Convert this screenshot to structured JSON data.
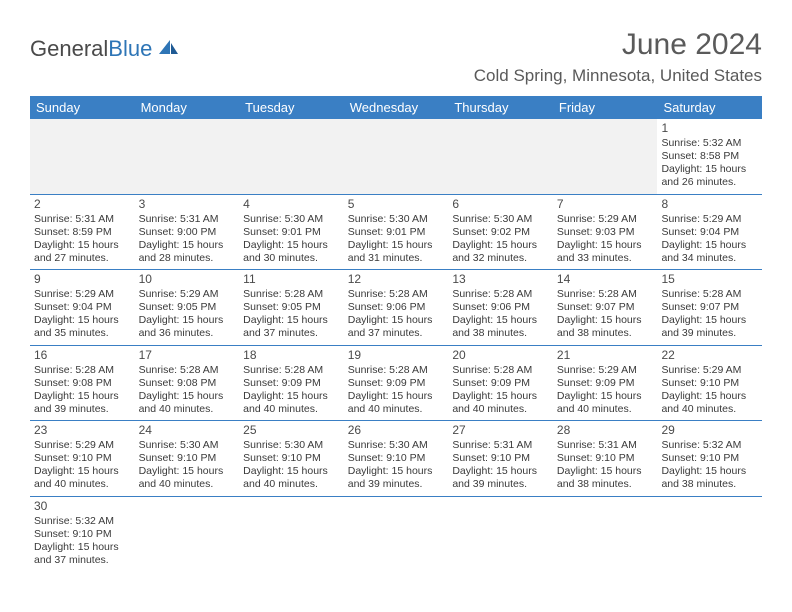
{
  "logo": {
    "text1": "General",
    "text2": "Blue"
  },
  "title": "June 2024",
  "location": "Cold Spring, Minnesota, United States",
  "colors": {
    "header_bg": "#3a7fc4",
    "header_text": "#ffffff",
    "border": "#3a7fc4",
    "empty_bg": "#f2f2f2",
    "body_text": "#3a3a3a",
    "title_text": "#5a5a5a"
  },
  "weekdays": [
    "Sunday",
    "Monday",
    "Tuesday",
    "Wednesday",
    "Thursday",
    "Friday",
    "Saturday"
  ],
  "weeks": [
    [
      {
        "day": "",
        "empty": true
      },
      {
        "day": "",
        "empty": true
      },
      {
        "day": "",
        "empty": true
      },
      {
        "day": "",
        "empty": true
      },
      {
        "day": "",
        "empty": true
      },
      {
        "day": "",
        "empty": true
      },
      {
        "day": "1",
        "sunrise": "Sunrise: 5:32 AM",
        "sunset": "Sunset: 8:58 PM",
        "daylight1": "Daylight: 15 hours",
        "daylight2": "and 26 minutes."
      }
    ],
    [
      {
        "day": "2",
        "sunrise": "Sunrise: 5:31 AM",
        "sunset": "Sunset: 8:59 PM",
        "daylight1": "Daylight: 15 hours",
        "daylight2": "and 27 minutes."
      },
      {
        "day": "3",
        "sunrise": "Sunrise: 5:31 AM",
        "sunset": "Sunset: 9:00 PM",
        "daylight1": "Daylight: 15 hours",
        "daylight2": "and 28 minutes."
      },
      {
        "day": "4",
        "sunrise": "Sunrise: 5:30 AM",
        "sunset": "Sunset: 9:01 PM",
        "daylight1": "Daylight: 15 hours",
        "daylight2": "and 30 minutes."
      },
      {
        "day": "5",
        "sunrise": "Sunrise: 5:30 AM",
        "sunset": "Sunset: 9:01 PM",
        "daylight1": "Daylight: 15 hours",
        "daylight2": "and 31 minutes."
      },
      {
        "day": "6",
        "sunrise": "Sunrise: 5:30 AM",
        "sunset": "Sunset: 9:02 PM",
        "daylight1": "Daylight: 15 hours",
        "daylight2": "and 32 minutes."
      },
      {
        "day": "7",
        "sunrise": "Sunrise: 5:29 AM",
        "sunset": "Sunset: 9:03 PM",
        "daylight1": "Daylight: 15 hours",
        "daylight2": "and 33 minutes."
      },
      {
        "day": "8",
        "sunrise": "Sunrise: 5:29 AM",
        "sunset": "Sunset: 9:04 PM",
        "daylight1": "Daylight: 15 hours",
        "daylight2": "and 34 minutes."
      }
    ],
    [
      {
        "day": "9",
        "sunrise": "Sunrise: 5:29 AM",
        "sunset": "Sunset: 9:04 PM",
        "daylight1": "Daylight: 15 hours",
        "daylight2": "and 35 minutes."
      },
      {
        "day": "10",
        "sunrise": "Sunrise: 5:29 AM",
        "sunset": "Sunset: 9:05 PM",
        "daylight1": "Daylight: 15 hours",
        "daylight2": "and 36 minutes."
      },
      {
        "day": "11",
        "sunrise": "Sunrise: 5:28 AM",
        "sunset": "Sunset: 9:05 PM",
        "daylight1": "Daylight: 15 hours",
        "daylight2": "and 37 minutes."
      },
      {
        "day": "12",
        "sunrise": "Sunrise: 5:28 AM",
        "sunset": "Sunset: 9:06 PM",
        "daylight1": "Daylight: 15 hours",
        "daylight2": "and 37 minutes."
      },
      {
        "day": "13",
        "sunrise": "Sunrise: 5:28 AM",
        "sunset": "Sunset: 9:06 PM",
        "daylight1": "Daylight: 15 hours",
        "daylight2": "and 38 minutes."
      },
      {
        "day": "14",
        "sunrise": "Sunrise: 5:28 AM",
        "sunset": "Sunset: 9:07 PM",
        "daylight1": "Daylight: 15 hours",
        "daylight2": "and 38 minutes."
      },
      {
        "day": "15",
        "sunrise": "Sunrise: 5:28 AM",
        "sunset": "Sunset: 9:07 PM",
        "daylight1": "Daylight: 15 hours",
        "daylight2": "and 39 minutes."
      }
    ],
    [
      {
        "day": "16",
        "sunrise": "Sunrise: 5:28 AM",
        "sunset": "Sunset: 9:08 PM",
        "daylight1": "Daylight: 15 hours",
        "daylight2": "and 39 minutes."
      },
      {
        "day": "17",
        "sunrise": "Sunrise: 5:28 AM",
        "sunset": "Sunset: 9:08 PM",
        "daylight1": "Daylight: 15 hours",
        "daylight2": "and 40 minutes."
      },
      {
        "day": "18",
        "sunrise": "Sunrise: 5:28 AM",
        "sunset": "Sunset: 9:09 PM",
        "daylight1": "Daylight: 15 hours",
        "daylight2": "and 40 minutes."
      },
      {
        "day": "19",
        "sunrise": "Sunrise: 5:28 AM",
        "sunset": "Sunset: 9:09 PM",
        "daylight1": "Daylight: 15 hours",
        "daylight2": "and 40 minutes."
      },
      {
        "day": "20",
        "sunrise": "Sunrise: 5:28 AM",
        "sunset": "Sunset: 9:09 PM",
        "daylight1": "Daylight: 15 hours",
        "daylight2": "and 40 minutes."
      },
      {
        "day": "21",
        "sunrise": "Sunrise: 5:29 AM",
        "sunset": "Sunset: 9:09 PM",
        "daylight1": "Daylight: 15 hours",
        "daylight2": "and 40 minutes."
      },
      {
        "day": "22",
        "sunrise": "Sunrise: 5:29 AM",
        "sunset": "Sunset: 9:10 PM",
        "daylight1": "Daylight: 15 hours",
        "daylight2": "and 40 minutes."
      }
    ],
    [
      {
        "day": "23",
        "sunrise": "Sunrise: 5:29 AM",
        "sunset": "Sunset: 9:10 PM",
        "daylight1": "Daylight: 15 hours",
        "daylight2": "and 40 minutes."
      },
      {
        "day": "24",
        "sunrise": "Sunrise: 5:30 AM",
        "sunset": "Sunset: 9:10 PM",
        "daylight1": "Daylight: 15 hours",
        "daylight2": "and 40 minutes."
      },
      {
        "day": "25",
        "sunrise": "Sunrise: 5:30 AM",
        "sunset": "Sunset: 9:10 PM",
        "daylight1": "Daylight: 15 hours",
        "daylight2": "and 40 minutes."
      },
      {
        "day": "26",
        "sunrise": "Sunrise: 5:30 AM",
        "sunset": "Sunset: 9:10 PM",
        "daylight1": "Daylight: 15 hours",
        "daylight2": "and 39 minutes."
      },
      {
        "day": "27",
        "sunrise": "Sunrise: 5:31 AM",
        "sunset": "Sunset: 9:10 PM",
        "daylight1": "Daylight: 15 hours",
        "daylight2": "and 39 minutes."
      },
      {
        "day": "28",
        "sunrise": "Sunrise: 5:31 AM",
        "sunset": "Sunset: 9:10 PM",
        "daylight1": "Daylight: 15 hours",
        "daylight2": "and 38 minutes."
      },
      {
        "day": "29",
        "sunrise": "Sunrise: 5:32 AM",
        "sunset": "Sunset: 9:10 PM",
        "daylight1": "Daylight: 15 hours",
        "daylight2": "and 38 minutes."
      }
    ],
    [
      {
        "day": "30",
        "sunrise": "Sunrise: 5:32 AM",
        "sunset": "Sunset: 9:10 PM",
        "daylight1": "Daylight: 15 hours",
        "daylight2": "and 37 minutes."
      },
      {
        "day": "",
        "empty": true,
        "blank": true
      },
      {
        "day": "",
        "empty": true,
        "blank": true
      },
      {
        "day": "",
        "empty": true,
        "blank": true
      },
      {
        "day": "",
        "empty": true,
        "blank": true
      },
      {
        "day": "",
        "empty": true,
        "blank": true
      },
      {
        "day": "",
        "empty": true,
        "blank": true
      }
    ]
  ]
}
